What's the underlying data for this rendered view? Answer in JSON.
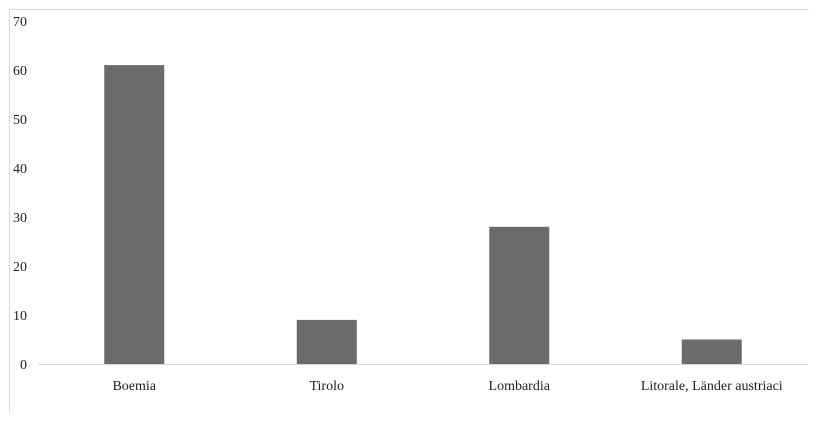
{
  "chart_data": {
    "type": "bar",
    "title": "",
    "xlabel": "",
    "ylabel": "",
    "categories": [
      "Boemia",
      "Tirolo",
      "Lombardia",
      "Litorale, Länder austriaci"
    ],
    "values": [
      61,
      9,
      28,
      5
    ],
    "ylim": [
      0,
      70
    ],
    "yticks": [
      0,
      10,
      20,
      30,
      40,
      50,
      60,
      70
    ],
    "grid": false,
    "legend": "none",
    "bar_color": "#6b6b6b",
    "axis_color": "#d9d9d9"
  }
}
